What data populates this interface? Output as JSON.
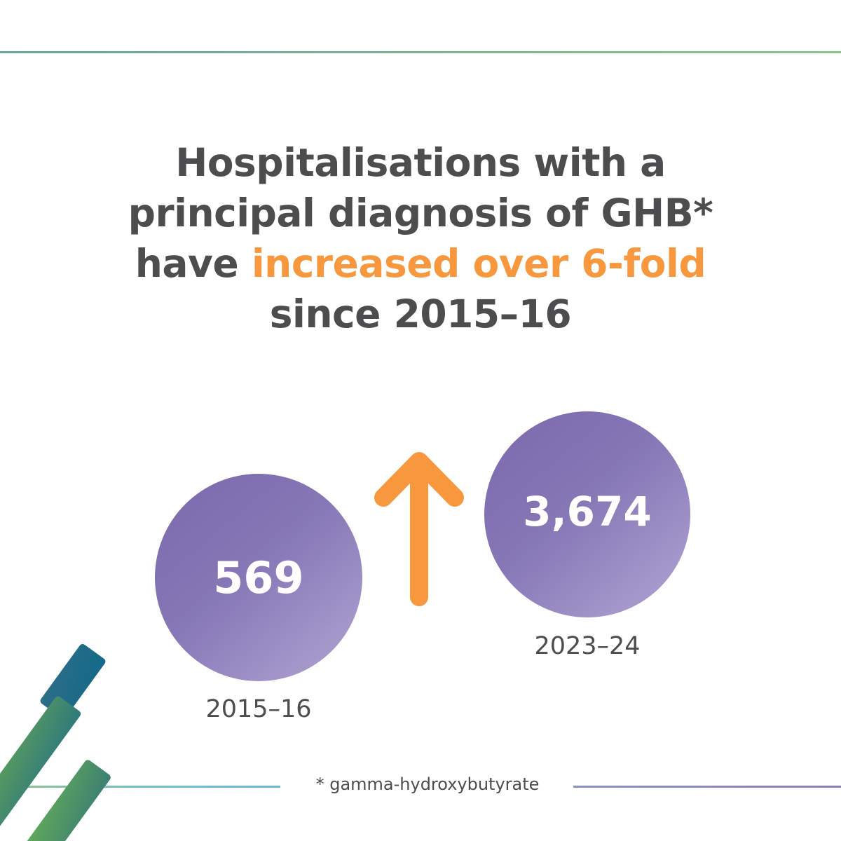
{
  "headline": {
    "line1": "Hospitalisations with a",
    "line2": "principal diagnosis of GHB*",
    "line3_prefix": "have ",
    "line3_highlight": "increased over 6-fold",
    "line4": "since 2015–16"
  },
  "stats": {
    "earlier": {
      "value": "569",
      "period": "2015–16"
    },
    "later": {
      "value": "3,674",
      "period": "2023–24"
    }
  },
  "trend_icon": "arrow-up-icon",
  "footnote": "* gamma-hydroxybutyrate",
  "colors": {
    "text": "#4d4d4f",
    "highlight": "#f7983f",
    "circle": "#7b68ad",
    "arrow": "#f7983f",
    "deco_teal": "#1a6f8c",
    "deco_green": "#5fa05a"
  }
}
